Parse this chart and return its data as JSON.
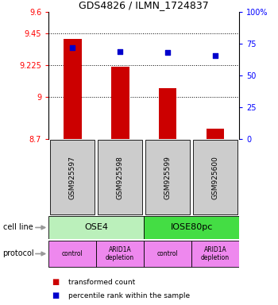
{
  "title": "GDS4826 / ILMN_1724837",
  "samples": [
    "GSM925597",
    "GSM925598",
    "GSM925599",
    "GSM925600"
  ],
  "bar_values": [
    9.41,
    9.215,
    9.06,
    8.77
  ],
  "bar_bottom": 8.7,
  "percentile_values": [
    72,
    69,
    68,
    66
  ],
  "ylim_left": [
    8.7,
    9.6
  ],
  "ylim_right": [
    0,
    100
  ],
  "yticks_left": [
    8.7,
    9.0,
    9.225,
    9.45,
    9.6
  ],
  "ytick_labels_left": [
    "8.7",
    "9",
    "9.225",
    "9.45",
    "9.6"
  ],
  "yticks_right": [
    0,
    25,
    50,
    75,
    100
  ],
  "ytick_labels_right": [
    "0",
    "25",
    "50",
    "75",
    "100%"
  ],
  "hlines": [
    9.45,
    9.225,
    9.0
  ],
  "bar_color": "#cc0000",
  "percentile_color": "#0000cc",
  "cell_line_labels": [
    "OSE4",
    "IOSE80pc"
  ],
  "cell_line_colors": [
    "#bbf0bb",
    "#44dd44"
  ],
  "protocol_labels": [
    "control",
    "ARID1A\ndepletion",
    "control",
    "ARID1A\ndepletion"
  ],
  "protocol_color": "#ee88ee",
  "row_label_cell_line": "cell line",
  "row_label_protocol": "protocol",
  "legend_bar_label": "transformed count",
  "legend_pct_label": "percentile rank within the sample",
  "sample_box_color": "#cccccc",
  "arrow_color": "#999999"
}
